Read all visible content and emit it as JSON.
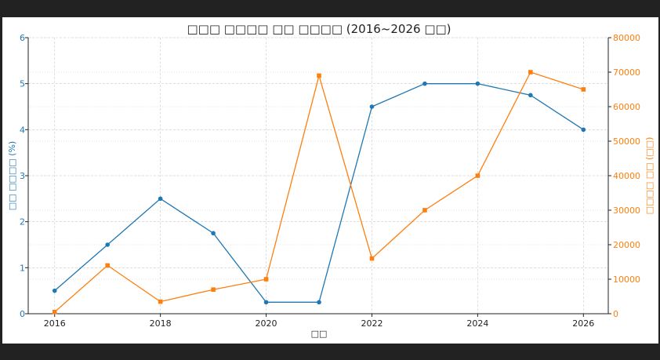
{
  "chart_data": {
    "type": "line",
    "title": "□□□ □□□□ □□ □□□□ (2016~2026 □□)",
    "xlabel": "□□",
    "ylabel_left": "□□ □□□□ (%)",
    "ylabel_right": "□□□□ □□ (□□)",
    "x": [
      2016,
      2017,
      2018,
      2019,
      2020,
      2021,
      2022,
      2023,
      2024,
      2025,
      2026
    ],
    "xlim": [
      2015.5,
      2026.47
    ],
    "xticks": [
      "2016",
      "2018",
      "2020",
      "2022",
      "2024",
      "2026"
    ],
    "ylim_left": [
      0,
      6
    ],
    "yticks_left": [
      "0",
      "1",
      "2",
      "3",
      "4",
      "5",
      "6"
    ],
    "ylim_right": [
      0,
      80000
    ],
    "yticks_right": [
      "0",
      "10000",
      "20000",
      "30000",
      "40000",
      "50000",
      "60000",
      "70000",
      "80000"
    ],
    "grid": true,
    "series": [
      {
        "axis": "left",
        "color": "#1f77b4",
        "marker": "circle",
        "values": [
          0.5,
          1.5,
          2.5,
          1.75,
          0.25,
          0.25,
          4.5,
          5,
          5,
          4.75,
          4
        ]
      },
      {
        "axis": "right",
        "color": "#ff7f0e",
        "marker": "square",
        "values": [
          500,
          14000,
          3500,
          7000,
          10000,
          69000,
          16000,
          30000,
          40000,
          70000,
          65000
        ]
      }
    ]
  }
}
